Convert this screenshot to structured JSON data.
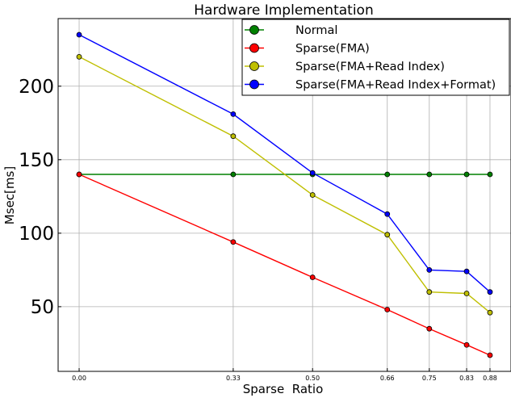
{
  "chart_data": {
    "type": "line",
    "title": "Hardware Implementation",
    "xlabel": "Sparse  Ratio",
    "ylabel": "Msec[ms]",
    "x": [
      0.0,
      0.33,
      0.5,
      0.66,
      0.75,
      0.83,
      0.88
    ],
    "x_tick_labels": [
      "0.00",
      "0.33",
      "0.50",
      "0.66",
      "0.75",
      "0.83",
      "0.88"
    ],
    "y_ticks": [
      50,
      100,
      150,
      200
    ],
    "xlim": [
      -0.045,
      0.925
    ],
    "ylim": [
      6,
      246
    ],
    "grid": true,
    "legend_position": "top-right",
    "series": [
      {
        "name": "Normal",
        "color": "#008000",
        "values": [
          140,
          140,
          140,
          140,
          140,
          140,
          140
        ]
      },
      {
        "name": "Sparse(FMA)",
        "color": "#ff0000",
        "values": [
          140,
          94,
          70,
          48,
          35,
          24,
          17
        ]
      },
      {
        "name": "Sparse(FMA+Read Index)",
        "color": "#bfbf00",
        "values": [
          220,
          166,
          126,
          99,
          60,
          59,
          46
        ]
      },
      {
        "name": "Sparse(FMA+Read Index+Format)",
        "color": "#0000ff",
        "values": [
          235,
          181,
          141,
          113,
          75,
          74,
          60
        ]
      }
    ]
  }
}
